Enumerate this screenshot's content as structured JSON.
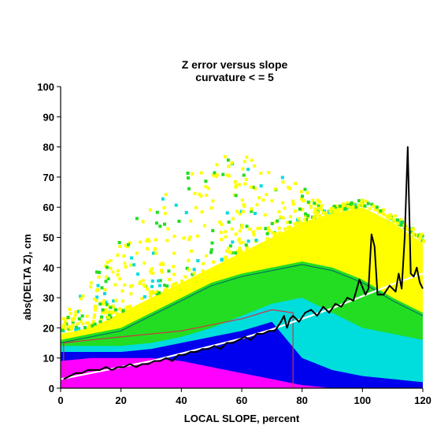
{
  "chart_data": {
    "type": "heatmap",
    "title": "Z error versus slope",
    "subtitle": "curvature < = 5",
    "xlabel": "LOCAL SLOPE, percent",
    "ylabel": "abs(DELTA Z), cm",
    "xlim": [
      0,
      120
    ],
    "ylim": [
      0,
      100
    ],
    "xticks": [
      "0",
      "20",
      "40",
      "60",
      "80",
      "100",
      "120"
    ],
    "yticks": [
      "0",
      "10",
      "20",
      "30",
      "40",
      "50",
      "60",
      "70",
      "80",
      "90",
      "100"
    ],
    "grid": false,
    "colors": {
      "low_density": "#ffff00",
      "mid_low": "#22dd22",
      "mid": "#00dddd",
      "mid_high": "#0000ee",
      "high_density": "#ff00ff",
      "median_line": "#000000",
      "fit_line": "#ffffff",
      "contour_outer": "#006666",
      "contour_inner": "#cc3344"
    },
    "median_curve": {
      "x": [
        1,
        3,
        5,
        7,
        9,
        11,
        13,
        15,
        17,
        19,
        21,
        23,
        25,
        27,
        29,
        31,
        33,
        35,
        37,
        39,
        41,
        43,
        45,
        47,
        49,
        51,
        53,
        55,
        57,
        59,
        61,
        63,
        65,
        67,
        69,
        71,
        73,
        74,
        75,
        76,
        77,
        79,
        81,
        83,
        85,
        87,
        89,
        91,
        93,
        95,
        97,
        99,
        101,
        102,
        103,
        104,
        105,
        107,
        109,
        111,
        112,
        113,
        114,
        115,
        116,
        117,
        118,
        119,
        120
      ],
      "y": [
        3,
        4,
        5,
        5,
        6,
        6,
        6,
        7,
        6,
        7,
        7,
        8,
        7,
        8,
        8,
        9,
        9,
        10,
        9,
        11,
        11,
        12,
        12,
        13,
        13,
        14,
        13,
        15,
        15,
        16,
        17,
        16,
        18,
        18,
        19,
        19,
        22,
        24,
        20,
        23,
        24,
        22,
        25,
        26,
        24,
        27,
        25,
        28,
        27,
        30,
        29,
        36,
        31,
        33,
        51,
        47,
        31,
        31,
        34,
        32,
        38,
        33,
        50,
        80,
        38,
        37,
        40,
        35,
        33
      ]
    },
    "fit_curve": {
      "x": [
        0,
        10,
        20,
        30,
        40,
        50,
        60,
        70,
        80,
        90,
        100,
        110,
        120
      ],
      "y": [
        3,
        5,
        7,
        9,
        11.5,
        14,
        16.5,
        19.5,
        23,
        26.5,
        30.5,
        34.5,
        38
      ]
    },
    "heatmap_bands": [
      {
        "label": "low_density",
        "upper_edge": [
          18,
          20,
          25,
          30,
          35,
          40,
          45,
          50,
          55,
          58,
          60,
          55,
          48
        ]
      },
      {
        "label": "mid_low",
        "upper_edge": [
          16,
          18,
          20,
          25,
          30,
          35,
          38,
          40,
          42,
          40,
          36,
          30,
          25
        ]
      },
      {
        "label": "mid",
        "upper_edge": [
          14,
          14,
          14,
          15,
          17,
          20,
          24,
          28,
          30,
          25,
          20,
          18,
          16
        ]
      },
      {
        "label": "mid_high",
        "upper_edge": [
          12,
          12,
          12,
          13,
          15,
          17,
          19,
          22,
          10,
          6,
          4,
          3,
          2
        ]
      },
      {
        "label": "high_density",
        "upper_edge": [
          9,
          10,
          10,
          10,
          9,
          7,
          5,
          3,
          1,
          0,
          0,
          0,
          0
        ]
      }
    ]
  }
}
